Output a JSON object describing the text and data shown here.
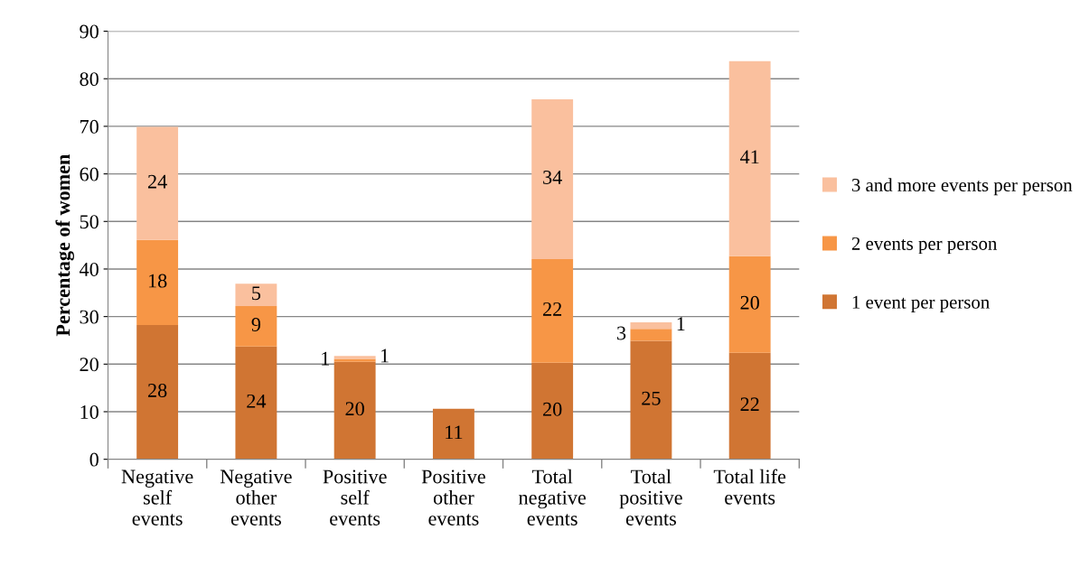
{
  "chart_data": {
    "type": "bar",
    "stacked": true,
    "ylabel": "Percentage of women",
    "categories": [
      "Negative\nself\nevents",
      "Negative\nother\nevents",
      "Positive\nself\nevents",
      "Positive\nother\nevents",
      "Total\nnegative\nevents",
      "Total\npositive\nevents",
      "Total life\nevents"
    ],
    "series": [
      {
        "name": "1 event per person",
        "color": "#d07533",
        "values": [
          28.2,
          23.7,
          20.5,
          10.6,
          20.3,
          24.9,
          22.4
        ],
        "value_labels": [
          "28",
          "24",
          "20",
          "11",
          "20",
          "25",
          "22"
        ]
      },
      {
        "name": "2 events per person",
        "color": "#f79646",
        "values": [
          17.9,
          8.5,
          0.6,
          null,
          21.8,
          2.5,
          20.3
        ],
        "value_labels": [
          "18",
          "9",
          "1",
          null,
          "22",
          "3",
          "20"
        ]
      },
      {
        "name": "3 and more events per person",
        "color": "#fac09e",
        "values": [
          23.8,
          4.7,
          0.6,
          null,
          33.6,
          1.4,
          41.0
        ],
        "value_labels": [
          "24",
          "5",
          "1",
          null,
          "34",
          "1",
          "41"
        ]
      }
    ],
    "ylim": [
      0,
      90
    ],
    "yticks": [
      0,
      10,
      20,
      30,
      40,
      50,
      60,
      70,
      80,
      90
    ],
    "grid": "y",
    "legend": "right"
  }
}
